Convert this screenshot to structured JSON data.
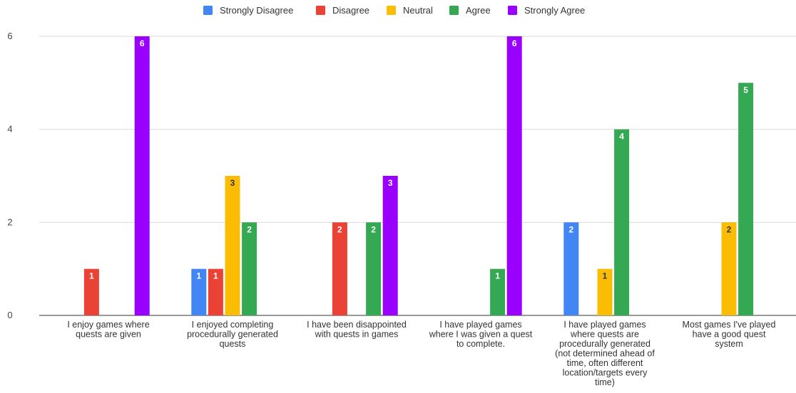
{
  "chart_data": {
    "type": "bar",
    "categories": [
      [
        "I enjoy games where",
        "quests are given"
      ],
      [
        "I enjoyed completing",
        "procedurally generated",
        "quests"
      ],
      [
        "I have been disappointed",
        "with quests in games"
      ],
      [
        "I have played games",
        "where I was given a quest",
        "to complete."
      ],
      [
        "I have played games",
        "where quests are",
        "procedurally generated",
        "(not determined ahead of",
        "time, often different",
        "location/targets every",
        "time)"
      ],
      [
        "Most games I've played",
        "have a good quest",
        "system"
      ]
    ],
    "series": [
      {
        "name": "Strongly Disagree",
        "color": "#4285f4",
        "values": [
          0,
          1,
          0,
          0,
          2,
          0
        ]
      },
      {
        "name": "Disagree",
        "color": "#ea4335",
        "values": [
          1,
          1,
          2,
          0,
          0,
          0
        ]
      },
      {
        "name": "Neutral",
        "color": "#fbbc04",
        "values": [
          0,
          3,
          0,
          0,
          1,
          2
        ]
      },
      {
        "name": "Agree",
        "color": "#34a853",
        "values": [
          0,
          2,
          2,
          1,
          4,
          5
        ]
      },
      {
        "name": "Strongly Agree",
        "color": "#9900ff",
        "values": [
          6,
          0,
          3,
          6,
          0,
          0
        ]
      }
    ],
    "ylim": [
      0,
      6
    ],
    "yticks": [
      0,
      2,
      4,
      6
    ],
    "legend": "top",
    "grid": true
  }
}
